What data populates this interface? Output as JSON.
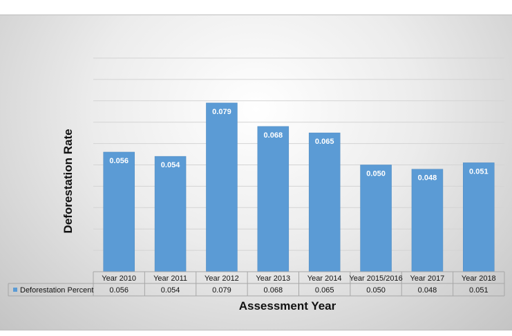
{
  "chart_data": {
    "type": "bar",
    "categories": [
      "Year 2010",
      "Year 2011",
      "Year 2012",
      "Year 2013",
      "Year 2014",
      "Year 2015/2016",
      "Year 2017",
      "Year 2018"
    ],
    "series": [
      {
        "name": "Deforestation Percent",
        "values": [
          0.056,
          0.054,
          0.079,
          0.068,
          0.065,
          0.05,
          0.048,
          0.051
        ],
        "labels": [
          "0.056",
          "0.054",
          "0.079",
          "0.068",
          "0.065",
          "0.050",
          "0.048",
          "0.051"
        ],
        "color": "#5b9bd5"
      }
    ],
    "xlabel": "Assessment Year",
    "ylabel": "Deforestation Rate",
    "ylim": [
      0,
      0.1
    ],
    "grid": true,
    "legend": "data-table"
  }
}
